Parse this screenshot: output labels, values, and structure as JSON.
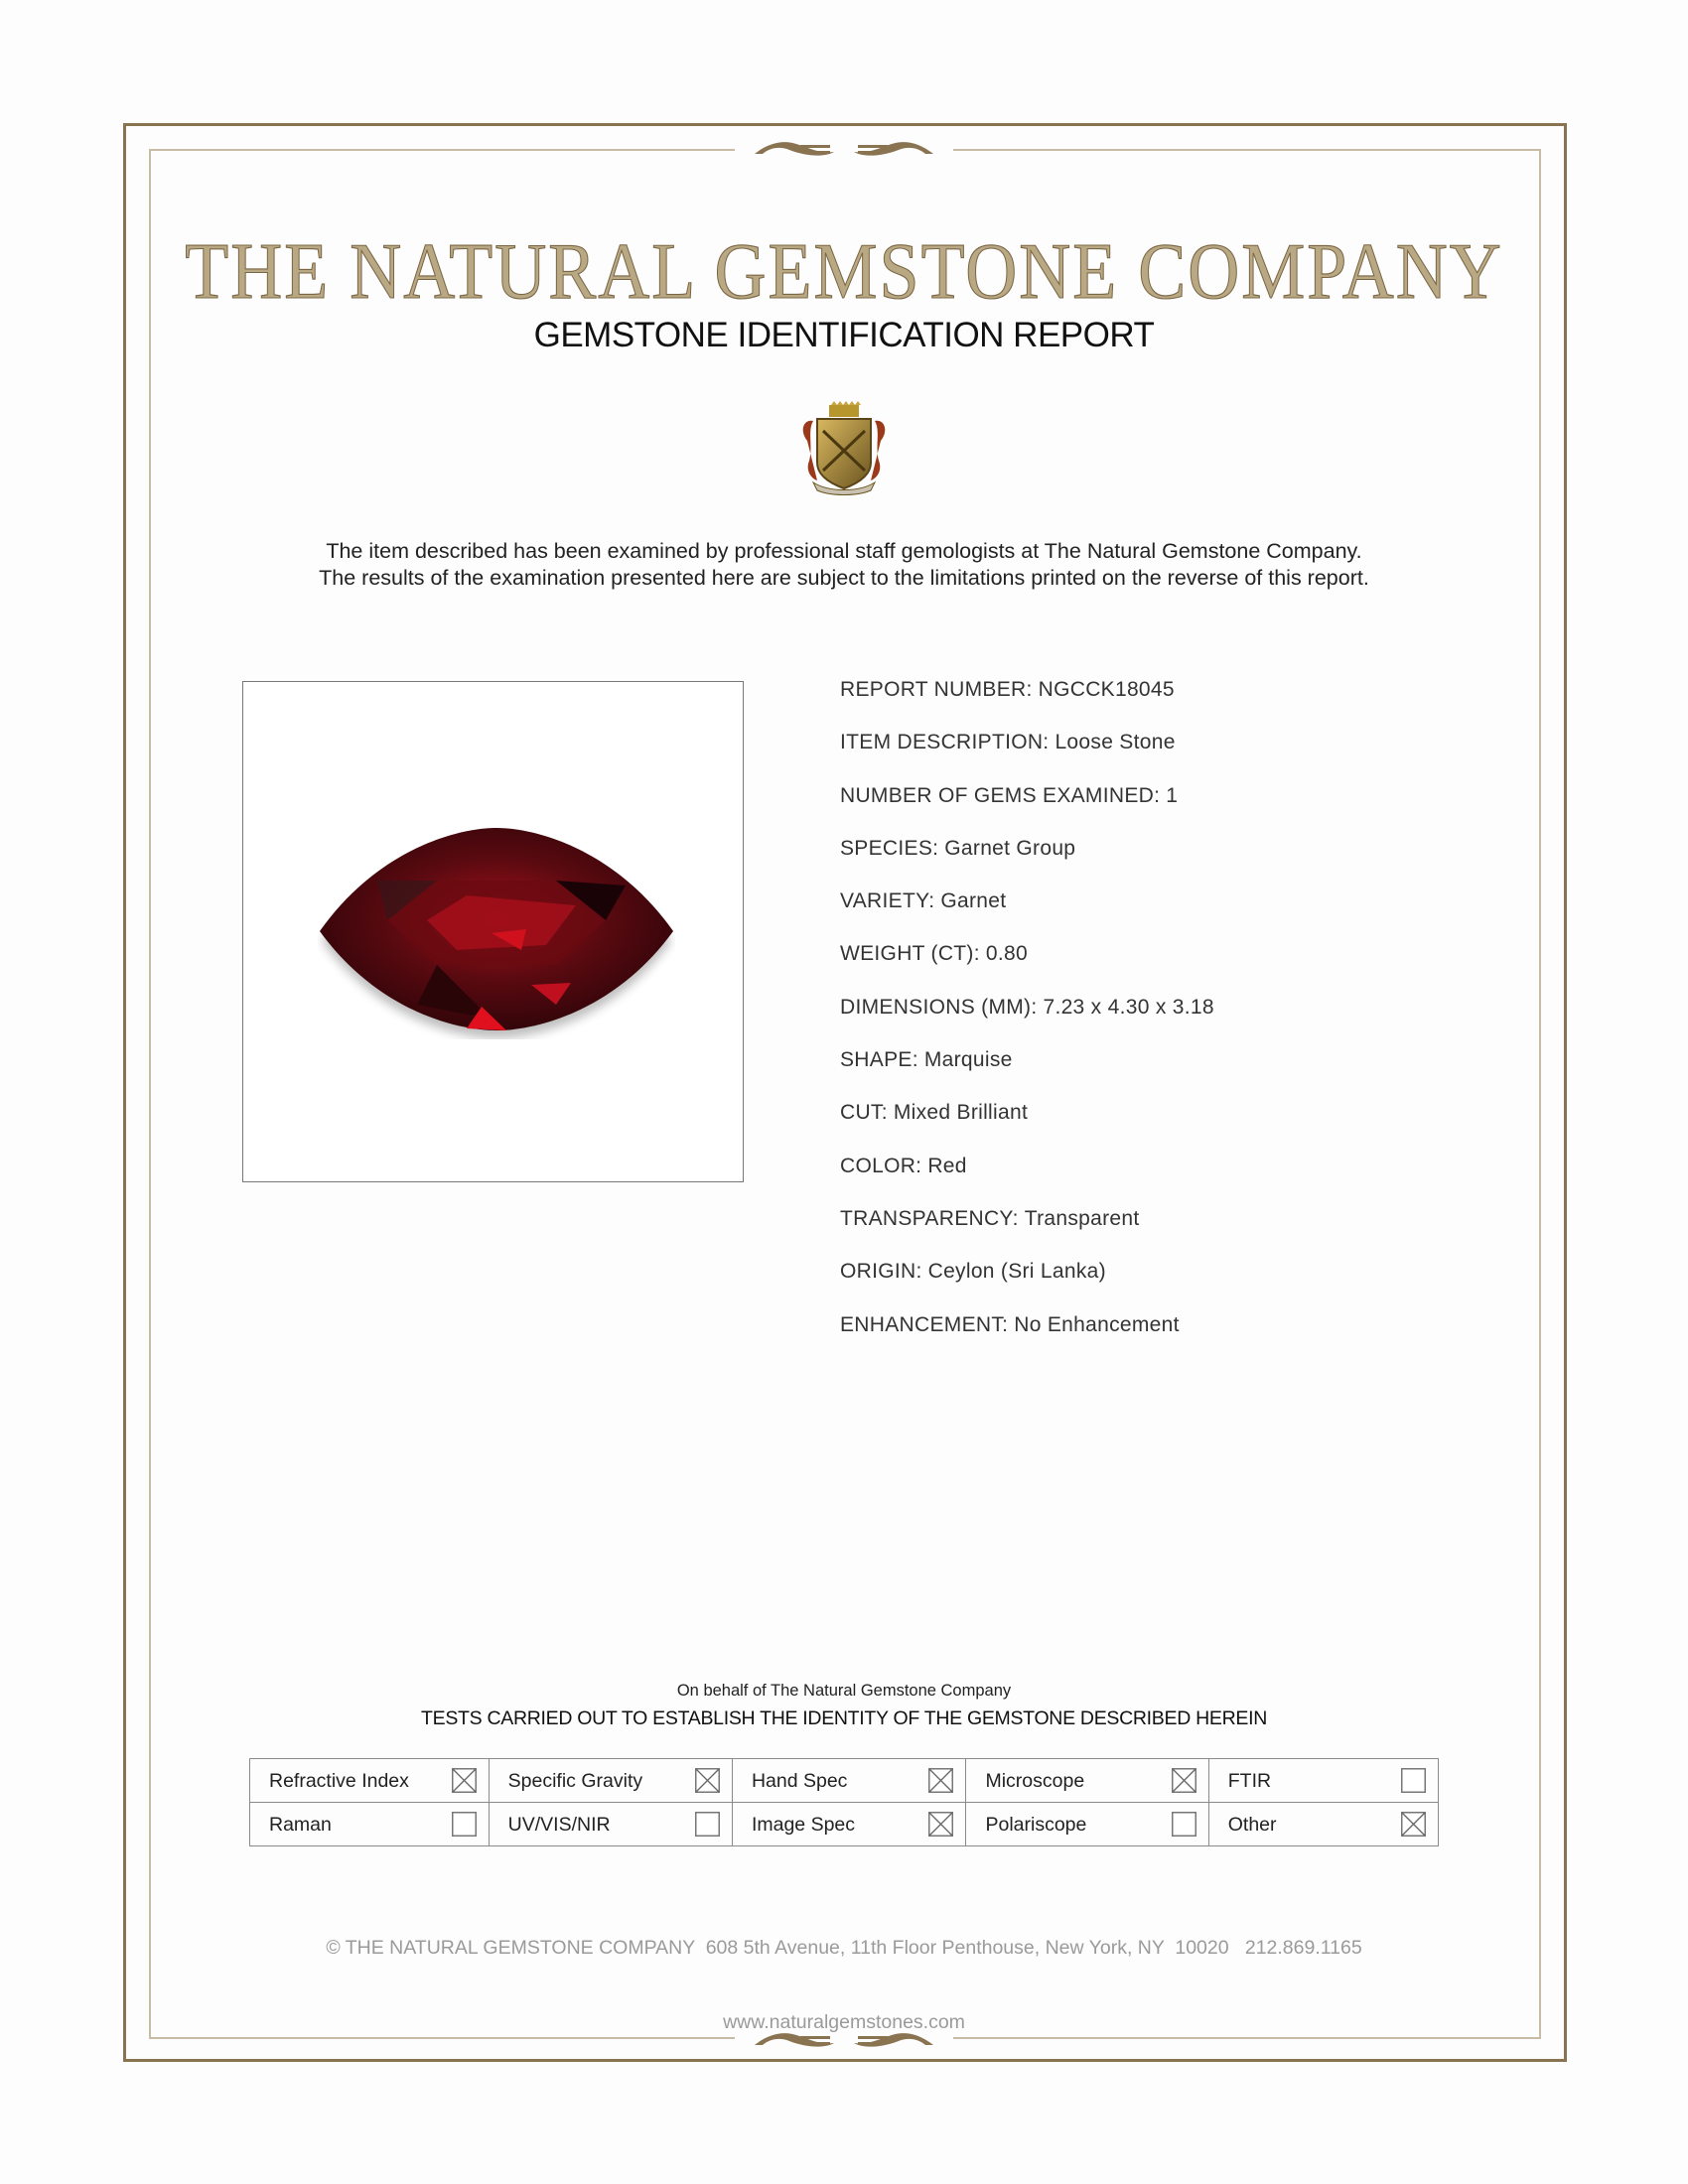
{
  "header": {
    "company": "THE NATURAL GEMSTONE COMPANY",
    "report_title": "GEMSTONE IDENTIFICATION REPORT",
    "intro_line1": "The item described has been examined by professional staff gemologists at The Natural Gemstone Company.",
    "intro_line2": "The results of the examination presented here are subject to the limitations printed on the reverse of this report."
  },
  "colors": {
    "border": "#8a7350",
    "title": "#b9a884",
    "gem": "#7a0a12"
  },
  "fields": [
    {
      "label": "REPORT NUMBER:",
      "value": "NGCCK18045"
    },
    {
      "label": "ITEM DESCRIPTION:",
      "value": "Loose Stone"
    },
    {
      "label": "NUMBER OF GEMS EXAMINED:",
      "value": "1"
    },
    {
      "label": "SPECIES:",
      "value": "Garnet Group"
    },
    {
      "label": "VARIETY:",
      "value": "Garnet"
    },
    {
      "label": "WEIGHT (CT):",
      "value": "0.80"
    },
    {
      "label": "DIMENSIONS (MM):",
      "value": "7.23 x 4.30 x 3.18"
    },
    {
      "label": "SHAPE:",
      "value": "Marquise"
    },
    {
      "label": "CUT:",
      "value": "Mixed Brilliant"
    },
    {
      "label": "COLOR:",
      "value": "Red"
    },
    {
      "label": "TRANSPARENCY:",
      "value": "Transparent"
    },
    {
      "label": "ORIGIN:",
      "value": "Ceylon (Sri Lanka)"
    },
    {
      "label": "ENHANCEMENT:",
      "value": "No Enhancement"
    }
  ],
  "tests": {
    "behalf": "On behalf of The Natural Gemstone Company",
    "heading": "TESTS CARRIED OUT TO ESTABLISH THE IDENTITY OF THE GEMSTONE DESCRIBED HEREIN",
    "items": [
      {
        "label": "Refractive Index",
        "checked": true
      },
      {
        "label": "Specific Gravity",
        "checked": true
      },
      {
        "label": "Hand Spec",
        "checked": true
      },
      {
        "label": "Microscope",
        "checked": true
      },
      {
        "label": "FTIR",
        "checked": false
      },
      {
        "label": "Raman",
        "checked": false
      },
      {
        "label": "UV/VIS/NIR",
        "checked": false
      },
      {
        "label": "Image Spec",
        "checked": true
      },
      {
        "label": "Polariscope",
        "checked": false
      },
      {
        "label": "Other",
        "checked": true
      }
    ]
  },
  "footer": {
    "address": "© THE NATURAL GEMSTONE COMPANY  608 5th Avenue, 11th Floor Penthouse, New York, NY  10020   212.869.1165",
    "website": "www.naturalgemstones.com"
  }
}
